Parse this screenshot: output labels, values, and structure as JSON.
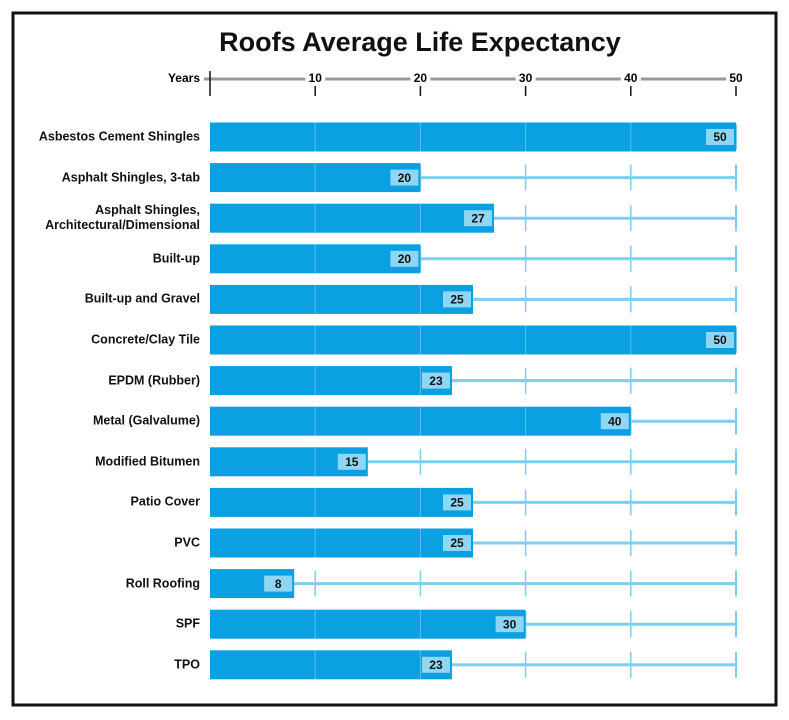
{
  "chart_data": {
    "type": "bar",
    "orientation": "horizontal",
    "title": "Roofs Average Life Expectancy",
    "x_label": "Years",
    "categories": [
      "Asbestos Cement Shingles",
      "Asphalt Shingles, 3-tab",
      "Asphalt Shingles, Architectural/Dimensional",
      "Built-up",
      "Built-up and Gravel",
      "Concrete/Clay Tile",
      "EPDM (Rubber)",
      "Metal (Galvalume)",
      "Modified Bitumen",
      "Patio Cover",
      "PVC",
      "Roll Roofing",
      "SPF",
      "TPO"
    ],
    "values": [
      50,
      20,
      27,
      20,
      25,
      50,
      23,
      40,
      15,
      25,
      25,
      8,
      30,
      23
    ],
    "color": "#0aa0e2",
    "track_color": "#7ccff0",
    "label_color": "#8fd6f4",
    "xlim": [
      0,
      50
    ],
    "xticks": [
      10,
      20,
      30,
      40,
      50
    ],
    "grid": true
  }
}
